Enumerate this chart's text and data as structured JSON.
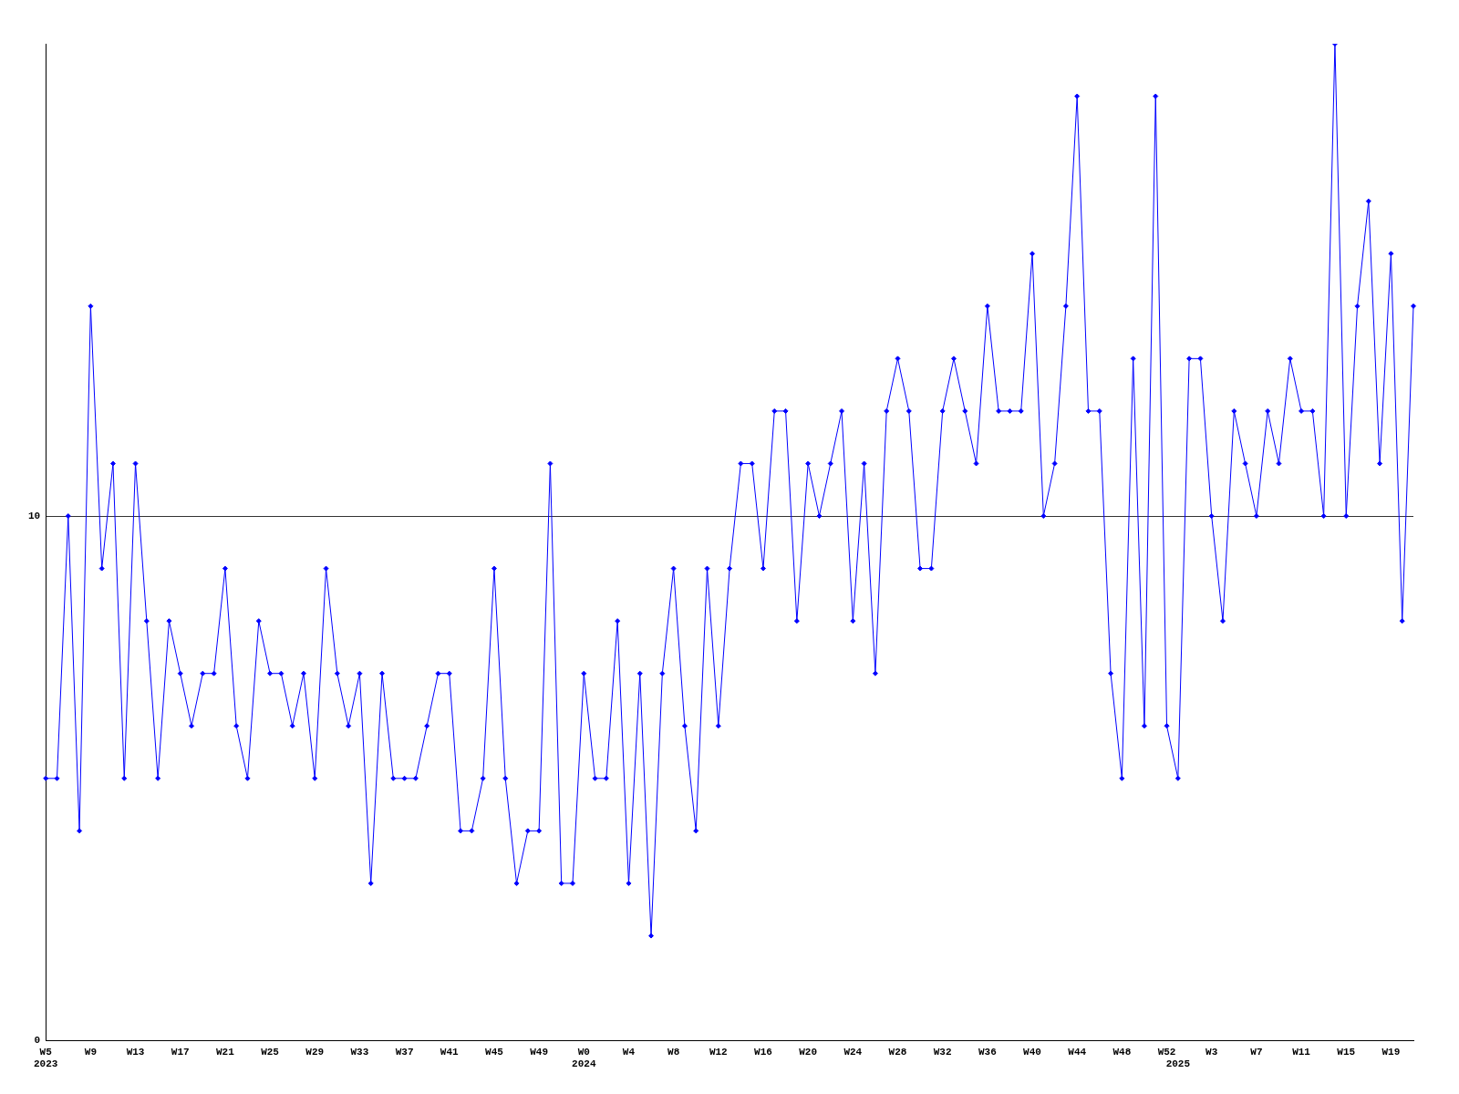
{
  "chart_data": {
    "type": "line",
    "categories": [
      "W5\n2023",
      null,
      null,
      null,
      "W9",
      null,
      null,
      null,
      "W13",
      null,
      null,
      null,
      "W17",
      null,
      null,
      null,
      "W21",
      null,
      null,
      null,
      "W25",
      null,
      null,
      null,
      "W29",
      null,
      null,
      null,
      "W33",
      null,
      null,
      null,
      "W37",
      null,
      null,
      null,
      "W41",
      null,
      null,
      null,
      "W45",
      null,
      null,
      null,
      "W49",
      null,
      null,
      null,
      "W0\n2024",
      null,
      null,
      null,
      "W4",
      null,
      null,
      null,
      "W8",
      null,
      null,
      null,
      "W12",
      null,
      null,
      null,
      "W16",
      null,
      null,
      null,
      "W20",
      null,
      null,
      null,
      "W24",
      null,
      null,
      null,
      "W28",
      null,
      null,
      null,
      "W32",
      null,
      null,
      null,
      "W36",
      null,
      null,
      null,
      "W40",
      null,
      null,
      null,
      "W44",
      null,
      null,
      null,
      "W48",
      null,
      null,
      null,
      "W52",
      "\n2025",
      null,
      null,
      "W3",
      null,
      null,
      null,
      "W7",
      null,
      null,
      null,
      "W11",
      null,
      null,
      null,
      "W15",
      null,
      null,
      null,
      "W19",
      null,
      null
    ],
    "series": [
      {
        "color": "#0000ff",
        "values": [
          5,
          5,
          10,
          4,
          14,
          9,
          11,
          5,
          11,
          8,
          5,
          8,
          7,
          6,
          7,
          7,
          9,
          6,
          5,
          8,
          7,
          7,
          6,
          7,
          5,
          9,
          7,
          6,
          7,
          3,
          7,
          5,
          5,
          5,
          6,
          7,
          7,
          4,
          4,
          5,
          9,
          5,
          3,
          4,
          4,
          11,
          3,
          3,
          7,
          5,
          5,
          8,
          3,
          7,
          2,
          7,
          9,
          6,
          4,
          9,
          6,
          9,
          11,
          11,
          9,
          12,
          12,
          8,
          11,
          10,
          11,
          12,
          8,
          11,
          7,
          12,
          13,
          12,
          9,
          9,
          12,
          13,
          12,
          11,
          14,
          12,
          12,
          12,
          15,
          10,
          11,
          14,
          18,
          12,
          12,
          7,
          5,
          13,
          6,
          18,
          6,
          5,
          13,
          13,
          10,
          8,
          12,
          11,
          10,
          12,
          11,
          13,
          12,
          12,
          10,
          19,
          10,
          14,
          16,
          11,
          15,
          8,
          14
        ]
      }
    ],
    "ylim": [
      0,
      19
    ],
    "yticks": [
      0,
      10
    ],
    "grid": "y",
    "marker": "diamond",
    "legend": false
  }
}
